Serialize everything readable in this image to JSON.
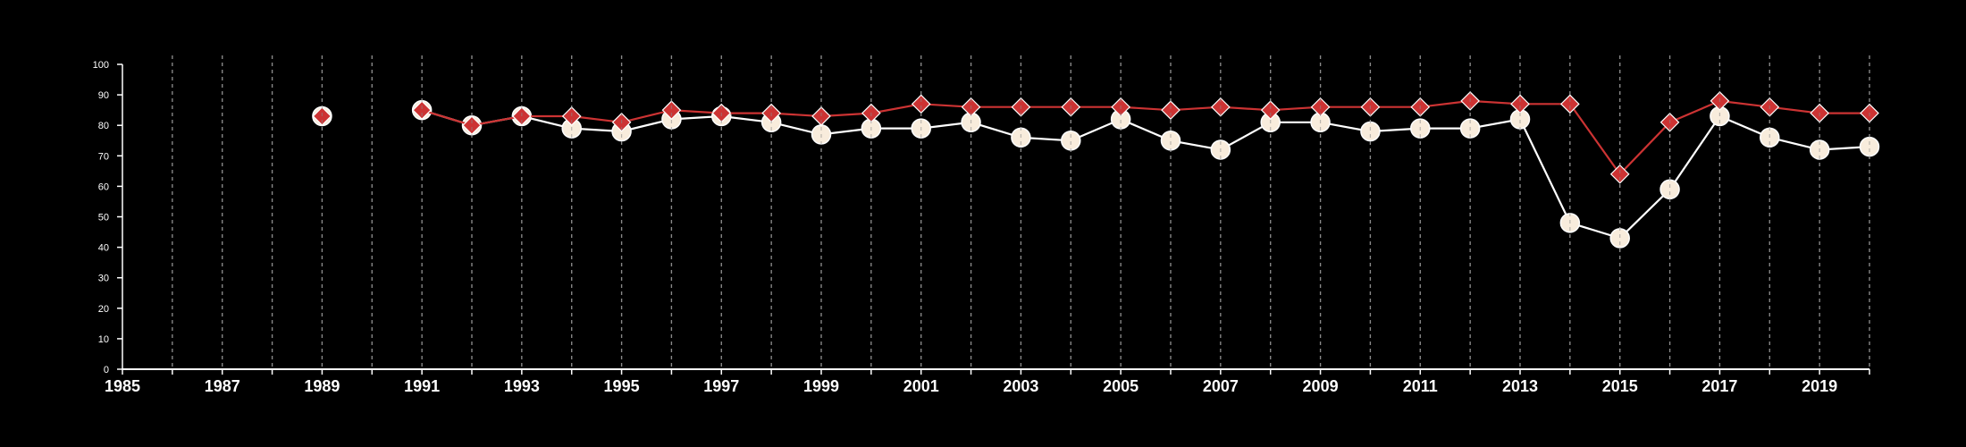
{
  "chart_data": {
    "type": "line",
    "title": "",
    "xlabel": "",
    "ylabel": "",
    "xlim": [
      1985,
      2020
    ],
    "ylim": [
      0,
      100
    ],
    "y_ticks": [
      0,
      10,
      20,
      30,
      40,
      50,
      60,
      70,
      80,
      90,
      100
    ],
    "x_tick_labels": [
      1985,
      1987,
      1989,
      1991,
      1993,
      1995,
      1997,
      1999,
      2001,
      2003,
      2005,
      2007,
      2009,
      2011,
      2013,
      2015,
      2017,
      2019
    ],
    "grid": {
      "vertical": true,
      "horizontal": false,
      "style": "dashed"
    },
    "legend": "none",
    "colors": {
      "background": "#000000",
      "axis": "#ffffff",
      "grid": "#8a8a8a"
    },
    "series": [
      {
        "marker": "circle",
        "color": "#f8ecdc",
        "line_color": "#ffffff",
        "points": [
          {
            "x": 1989,
            "y": 83
          },
          {
            "x": 1991,
            "y": 85,
            "connect": false
          },
          {
            "x": 1992,
            "y": 80
          },
          {
            "x": 1993,
            "y": 83
          },
          {
            "x": 1994,
            "y": 79
          },
          {
            "x": 1995,
            "y": 78
          },
          {
            "x": 1996,
            "y": 82
          },
          {
            "x": 1997,
            "y": 83
          },
          {
            "x": 1998,
            "y": 81
          },
          {
            "x": 1999,
            "y": 77
          },
          {
            "x": 2000,
            "y": 79
          },
          {
            "x": 2001,
            "y": 79
          },
          {
            "x": 2002,
            "y": 81
          },
          {
            "x": 2003,
            "y": 76
          },
          {
            "x": 2004,
            "y": 75
          },
          {
            "x": 2005,
            "y": 82
          },
          {
            "x": 2006,
            "y": 75
          },
          {
            "x": 2007,
            "y": 72
          },
          {
            "x": 2008,
            "y": 81
          },
          {
            "x": 2009,
            "y": 81
          },
          {
            "x": 2010,
            "y": 78
          },
          {
            "x": 2011,
            "y": 79
          },
          {
            "x": 2012,
            "y": 79
          },
          {
            "x": 2013,
            "y": 82
          },
          {
            "x": 2014,
            "y": 48
          },
          {
            "x": 2015,
            "y": 43
          },
          {
            "x": 2016,
            "y": 59
          },
          {
            "x": 2017,
            "y": 83
          },
          {
            "x": 2018,
            "y": 76
          },
          {
            "x": 2019,
            "y": 72
          },
          {
            "x": 2020,
            "y": 73
          }
        ]
      },
      {
        "marker": "diamond",
        "color": "#cc3333",
        "line_color": "#cc3333",
        "points": [
          {
            "x": 1989,
            "y": 83
          },
          {
            "x": 1991,
            "y": 85,
            "connect": false
          },
          {
            "x": 1992,
            "y": 80
          },
          {
            "x": 1993,
            "y": 83
          },
          {
            "x": 1994,
            "y": 83
          },
          {
            "x": 1995,
            "y": 81
          },
          {
            "x": 1996,
            "y": 85
          },
          {
            "x": 1997,
            "y": 84
          },
          {
            "x": 1998,
            "y": 84
          },
          {
            "x": 1999,
            "y": 83
          },
          {
            "x": 2000,
            "y": 84
          },
          {
            "x": 2001,
            "y": 87
          },
          {
            "x": 2002,
            "y": 86
          },
          {
            "x": 2003,
            "y": 86
          },
          {
            "x": 2004,
            "y": 86
          },
          {
            "x": 2005,
            "y": 86
          },
          {
            "x": 2006,
            "y": 85
          },
          {
            "x": 2007,
            "y": 86
          },
          {
            "x": 2008,
            "y": 85
          },
          {
            "x": 2009,
            "y": 86
          },
          {
            "x": 2010,
            "y": 86
          },
          {
            "x": 2011,
            "y": 86
          },
          {
            "x": 2012,
            "y": 88
          },
          {
            "x": 2013,
            "y": 87
          },
          {
            "x": 2014,
            "y": 87
          },
          {
            "x": 2015,
            "y": 64
          },
          {
            "x": 2016,
            "y": 81
          },
          {
            "x": 2017,
            "y": 88
          },
          {
            "x": 2018,
            "y": 86
          },
          {
            "x": 2019,
            "y": 84
          },
          {
            "x": 2020,
            "y": 84
          }
        ]
      }
    ]
  }
}
